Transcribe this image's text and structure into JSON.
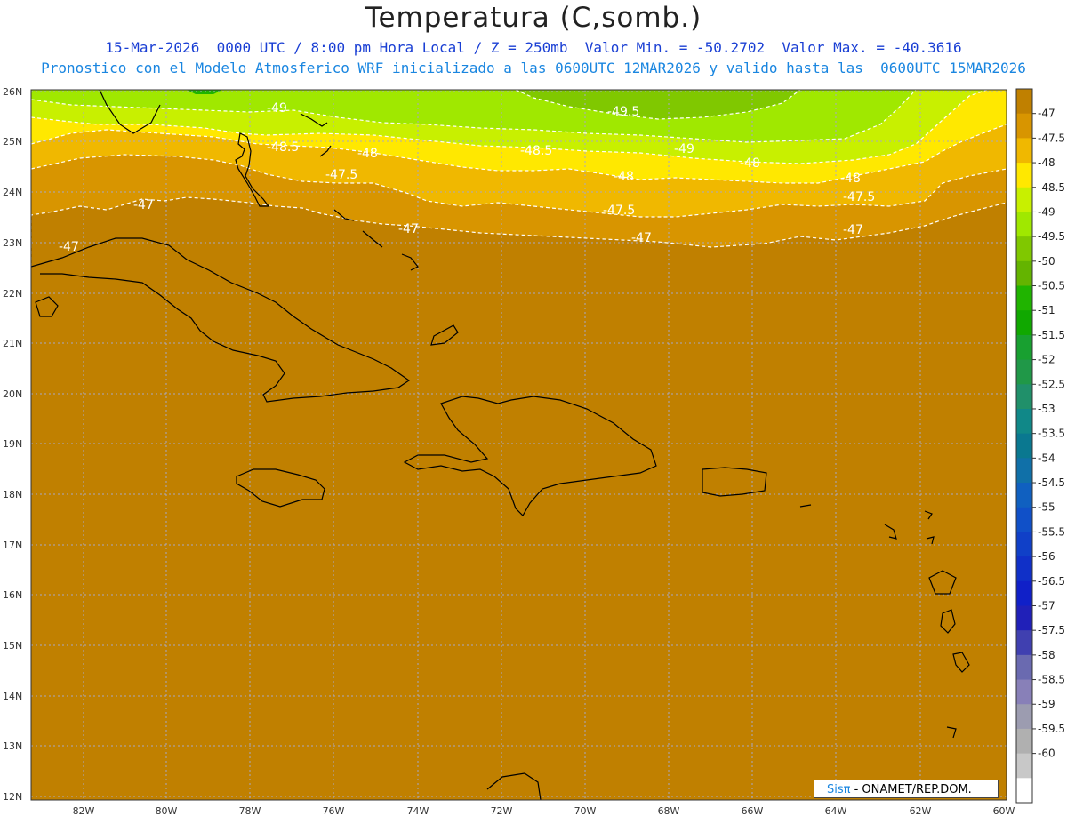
{
  "header": {
    "title": "Temperatura (C,somb.)",
    "line1": "15-Mar-2026  0000 UTC / 8:00 pm Hora Local / Z = 250mb  Valor Min. = -50.2702  Valor Max. = -40.3616",
    "line2": "Pronostico con el Modelo Atmosferico WRF inicializado a las 0600UTC_12MAR2026 y valido hasta las  0600UTC_15MAR2026"
  },
  "map": {
    "lat_labels": [
      "26N",
      "25N",
      "24N",
      "23N",
      "22N",
      "21N",
      "20N",
      "19N",
      "18N",
      "17N",
      "16N",
      "15N",
      "14N",
      "13N",
      "12N"
    ],
    "lon_labels": [
      "82W",
      "80W",
      "78W",
      "76W",
      "74W",
      "72W",
      "70W",
      "68W",
      "66W",
      "64W",
      "62W",
      "60W"
    ],
    "lat_range": [
      12,
      26
    ],
    "lon_range": [
      -83.2,
      -60
    ],
    "grid": true,
    "contour_labels": [
      "-49",
      "-49.5",
      "-48.5",
      "-49",
      "-48.5",
      "-48",
      "-48",
      "-47.5",
      "-48",
      "-48",
      "-47.5",
      "-47.5",
      "-47",
      "-47",
      "-47",
      "-47",
      "-47"
    ]
  },
  "colorbar": {
    "labels": [
      "-47",
      "-47.5",
      "-48",
      "-48.5",
      "-49",
      "-49.5",
      "-50",
      "-50.5",
      "-51",
      "-51.5",
      "-52",
      "-52.5",
      "-53",
      "-53.5",
      "-54",
      "-54.5",
      "-55",
      "-55.5",
      "-56",
      "-56.5",
      "-57",
      "-57.5",
      "-58",
      "-58.5",
      "-59",
      "-59.5",
      "-60"
    ],
    "colors": [
      "#c08000",
      "#d89500",
      "#f0b800",
      "#ffe800",
      "#c8f000",
      "#a0e800",
      "#80c800",
      "#64b400",
      "#20b400",
      "#10a800",
      "#18a030",
      "#209848",
      "#20906a",
      "#108888",
      "#0a7890",
      "#1070a8",
      "#1060c0",
      "#1050c8",
      "#1040c8",
      "#1030c8",
      "#1020c8",
      "#2020b8",
      "#4040b0",
      "#6a6ab0",
      "#8880b8",
      "#9c9cb0",
      "#b0b0b0",
      "#c8c8c8",
      "#ffffff"
    ]
  },
  "logo": {
    "brand": "Sisπ",
    "text": " - ONAMET/REP.DOM."
  }
}
